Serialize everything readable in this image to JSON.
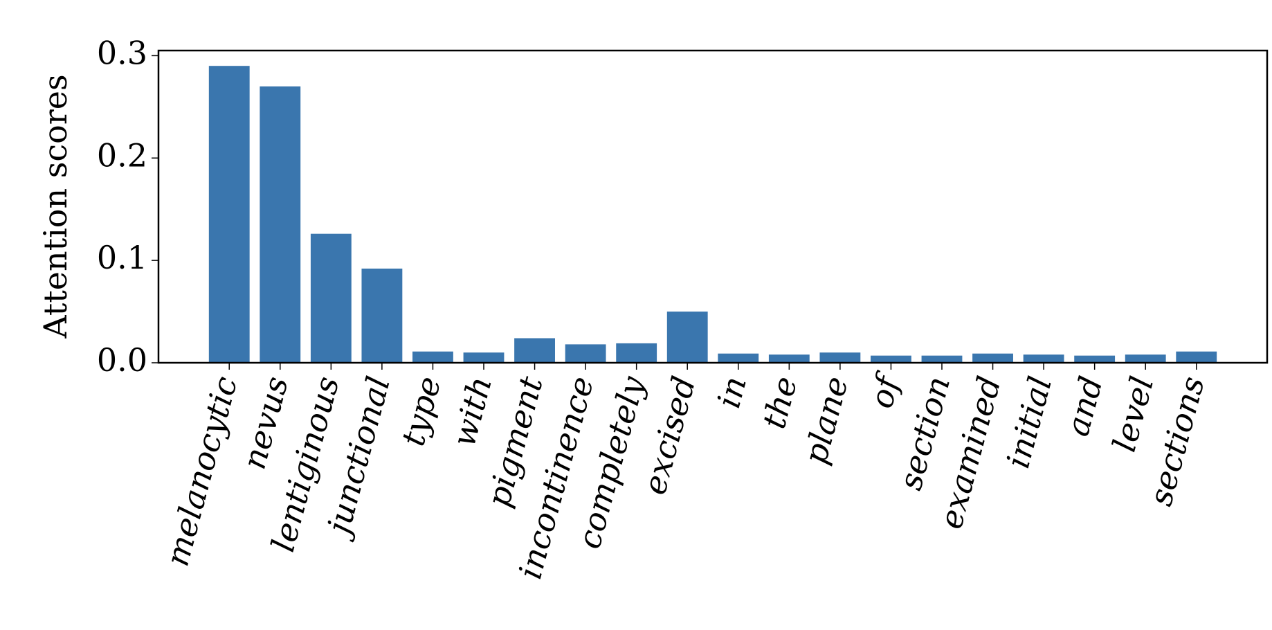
{
  "chart_data": {
    "type": "bar",
    "y_label": "Attention scores",
    "categories": [
      "melanocytic",
      "nevus",
      "lentiginous",
      "junctional",
      "type",
      "with",
      "pigment",
      "incontinence",
      "completely",
      "excised",
      "in",
      "the",
      "plane",
      "of",
      "section",
      "examined",
      "initial",
      "and",
      "level",
      "sections"
    ],
    "values": [
      0.29,
      0.27,
      0.126,
      0.092,
      0.011,
      0.01,
      0.024,
      0.018,
      0.019,
      0.05,
      0.009,
      0.008,
      0.01,
      0.007,
      0.007,
      0.009,
      0.008,
      0.007,
      0.008,
      0.011
    ],
    "color": "#3a76ae",
    "ylim": [
      0,
      0.305
    ],
    "yticks": [
      {
        "value": 0,
        "label": "0.0"
      },
      0.1,
      0.2,
      0.3
    ],
    "grid": false
  }
}
